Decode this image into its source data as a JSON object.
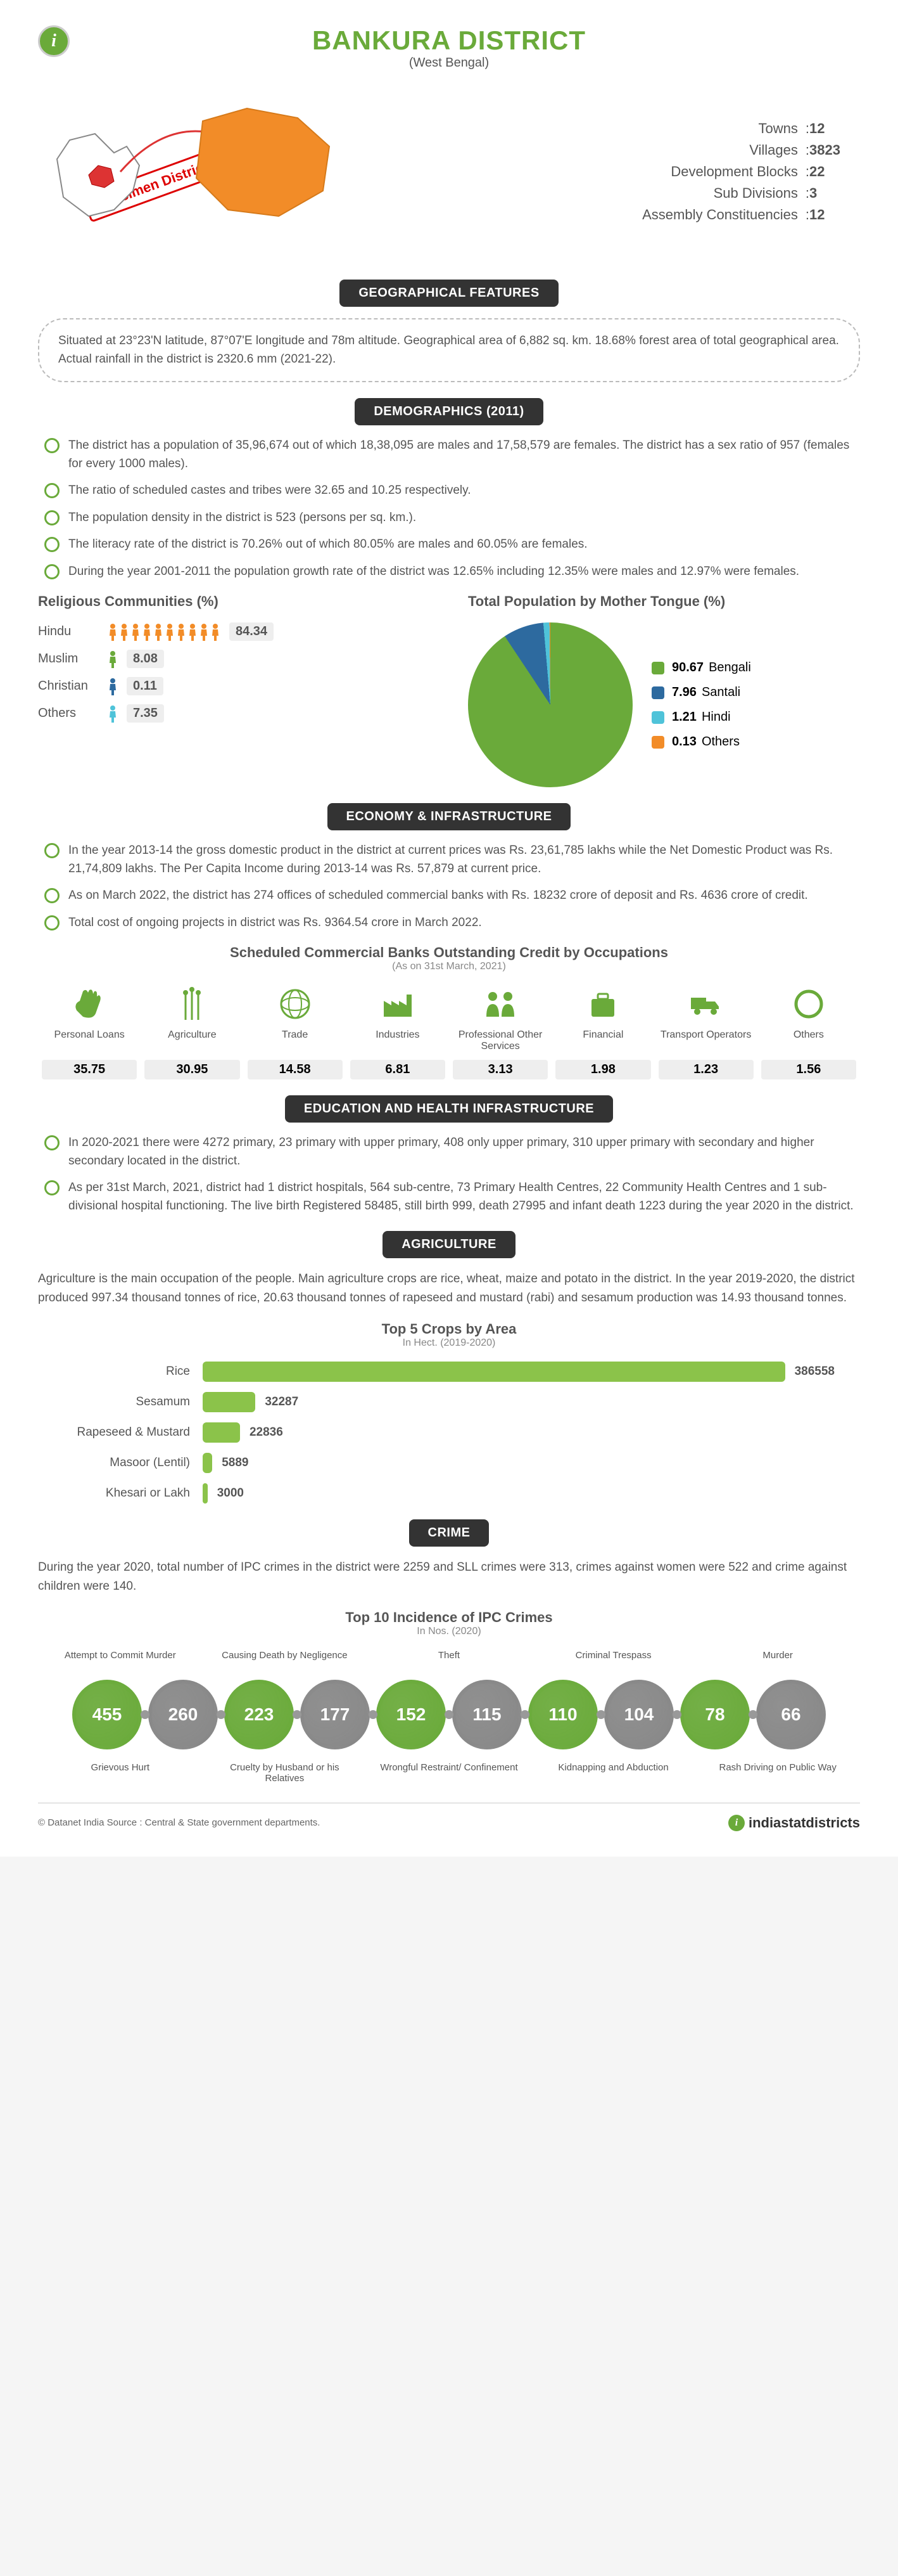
{
  "header": {
    "title": "BANKURA DISTRICT",
    "subtitle": "(West Bengal)",
    "specimen": "Specimen District"
  },
  "stats": [
    {
      "label": "Towns",
      "value": "12"
    },
    {
      "label": "Villages",
      "value": "3823"
    },
    {
      "label": "Development Blocks",
      "value": "22"
    },
    {
      "label": "Sub Divisions",
      "value": "3"
    },
    {
      "label": "Assembly Constituencies",
      "value": "12"
    }
  ],
  "geo": {
    "heading": "GEOGRAPHICAL FEATURES",
    "text": "Situated at 23°23'N latitude, 87°07'E longitude and 78m altitude. Geographical area of 6,882 sq. km. 18.68% forest area of total geographical area. Actual rainfall in the district is 2320.6 mm (2021-22)."
  },
  "demo": {
    "heading": "DEMOGRAPHICS (2011)",
    "bullets": [
      "The district has a population of 35,96,674 out of which 18,38,095 are males and 17,58,579 are females. The district has a sex ratio of 957 (females for every 1000 males).",
      "The ratio of scheduled castes and tribes were 32.65 and 10.25 respectively.",
      "The population density in the district is 523 (persons per sq. km.).",
      "The literacy rate of the district is 70.26% out of which 80.05% are males and 60.05% are females.",
      "During the year 2001-2011 the population growth rate of the district was 12.65% including 12.35% were males and 12.97% were females."
    ],
    "religion": {
      "title": "Religious Communities (%)",
      "rows": [
        {
          "label": "Hindu",
          "value": "84.34",
          "icons": 10,
          "color": "#f28c28"
        },
        {
          "label": "Muslim",
          "value": "8.08",
          "icons": 1,
          "color": "#6aaa3a"
        },
        {
          "label": "Christian",
          "value": "0.11",
          "icons": 1,
          "color": "#2d6a9f"
        },
        {
          "label": "Others",
          "value": "7.35",
          "icons": 1,
          "color": "#4fc3d9"
        }
      ]
    },
    "tongue": {
      "title": "Total Population by Mother Tongue (%)",
      "slices": [
        {
          "label": "Bengali",
          "value": "90.67",
          "color": "#6aaa3a"
        },
        {
          "label": "Santali",
          "value": "7.96",
          "color": "#2d6a9f"
        },
        {
          "label": "Hindi",
          "value": "1.21",
          "color": "#4fc3d9"
        },
        {
          "label": "Others",
          "value": "0.13",
          "color": "#f28c28"
        }
      ]
    }
  },
  "econ": {
    "heading": "ECONOMY & INFRASTRUCTURE",
    "bullets": [
      "In the year 2013-14 the gross domestic product in the district at current prices was Rs. 23,61,785 lakhs while the Net Domestic Product was Rs. 21,74,809 lakhs. The Per Capita Income during 2013-14 was Rs. 57,879 at current price.",
      "As on March 2022, the district has 274 offices of scheduled commercial banks with Rs. 18232 crore of deposit and Rs. 4636 crore of credit.",
      "Total cost of ongoing projects in district was Rs. 9364.54 crore in March 2022."
    ],
    "credit": {
      "title": "Scheduled Commercial Banks Outstanding Credit by Occupations",
      "note": "(As on 31st March, 2021)",
      "items": [
        {
          "label": "Personal Loans",
          "value": "35.75",
          "icon": "hand"
        },
        {
          "label": "Agriculture",
          "value": "30.95",
          "icon": "wheat"
        },
        {
          "label": "Trade",
          "value": "14.58",
          "icon": "globe"
        },
        {
          "label": "Industries",
          "value": "6.81",
          "icon": "factory"
        },
        {
          "label": "Professional Other Services",
          "value": "3.13",
          "icon": "people"
        },
        {
          "label": "Financial",
          "value": "1.98",
          "icon": "briefcase"
        },
        {
          "label": "Transport Operators",
          "value": "1.23",
          "icon": "truck"
        },
        {
          "label": "Others",
          "value": "1.56",
          "icon": "circle"
        }
      ]
    }
  },
  "edu": {
    "heading": "EDUCATION AND HEALTH INFRASTRUCTURE",
    "bullets": [
      "In 2020-2021 there were 4272 primary, 23 primary with upper primary, 408 only upper primary, 310 upper primary with secondary and higher secondary located in the district.",
      "As per 31st March, 2021, district had 1 district hospitals, 564 sub-centre, 73 Primary Health Centres, 22 Community Health Centres and 1 sub-divisional hospital functioning. The live birth Registered 58485, still birth 999, death 27995 and infant death 1223 during the year 2020 in the district."
    ]
  },
  "agri": {
    "heading": "AGRICULTURE",
    "text": "Agriculture is the main occupation of the people. Main agriculture crops are rice, wheat, maize and potato in the district. In the year 2019-2020, the district produced 997.34 thousand tonnes of rice, 20.63 thousand tonnes of rapeseed and mustard (rabi) and sesamum production was 14.93 thousand tonnes.",
    "crops": {
      "title": "Top 5 Crops by Area",
      "note": "In Hect. (2019-2020)",
      "max": 386558,
      "rows": [
        {
          "label": "Rice",
          "value": 386558
        },
        {
          "label": "Sesamum",
          "value": 32287
        },
        {
          "label": "Rapeseed & Mustard",
          "value": 22836
        },
        {
          "label": "Masoor (Lentil)",
          "value": 5889
        },
        {
          "label": "Khesari or Lakh",
          "value": 3000
        }
      ]
    }
  },
  "crime": {
    "heading": "CRIME",
    "text": "During the year 2020, total number of IPC crimes in the district were 2259 and SLL crimes were 313, crimes against women were 522 and crime against children were 140.",
    "chart": {
      "title": "Top 10 Incidence of IPC Crimes",
      "note": "In Nos. (2020)",
      "labels_top": [
        "Attempt to Commit Murder",
        "Causing Death by Negligence",
        "Theft",
        "Criminal Trespass",
        "Murder"
      ],
      "labels_bot": [
        "Grievous Hurt",
        "Cruelty by Husband or his Relatives",
        "Wrongful Restraint/ Confinement",
        "Kidnapping and Abduction",
        "Rash Driving on Public Way"
      ],
      "nodes": [
        {
          "value": "455",
          "color": "#6aaa3a"
        },
        {
          "value": "260",
          "color": "#888888"
        },
        {
          "value": "223",
          "color": "#6aaa3a"
        },
        {
          "value": "177",
          "color": "#888888"
        },
        {
          "value": "152",
          "color": "#6aaa3a"
        },
        {
          "value": "115",
          "color": "#888888"
        },
        {
          "value": "110",
          "color": "#6aaa3a"
        },
        {
          "value": "104",
          "color": "#888888"
        },
        {
          "value": "78",
          "color": "#6aaa3a"
        },
        {
          "value": "66",
          "color": "#888888"
        }
      ]
    }
  },
  "footer": {
    "left": "© Datanet India  Source : Central & State government departments.",
    "right": "indiastatdistricts"
  }
}
